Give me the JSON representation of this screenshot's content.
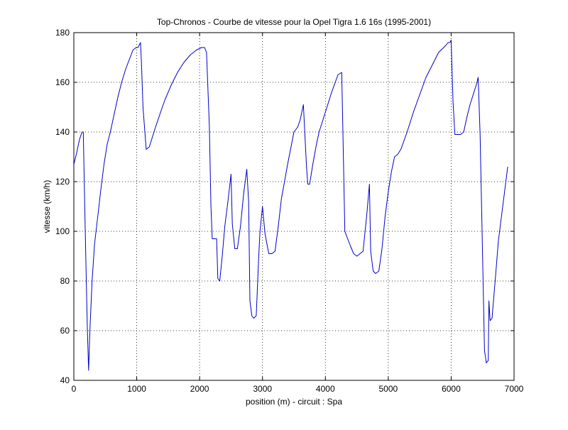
{
  "chart_data": {
    "type": "line",
    "title": "Top-Chronos - Courbe de vitesse pour la Opel Tigra 1.6 16s (1995-2001)",
    "xlabel": "position (m) - circuit : Spa",
    "ylabel": "vitesse (km/h)",
    "xlim": [
      0,
      7000
    ],
    "ylim": [
      40,
      180
    ],
    "xticks": [
      0,
      1000,
      2000,
      3000,
      4000,
      5000,
      6000,
      7000
    ],
    "yticks": [
      40,
      60,
      80,
      100,
      120,
      140,
      160,
      180
    ],
    "grid": true,
    "line_color": "#0000cc",
    "series": [
      {
        "x": [
          0,
          40,
          90,
          130,
          150,
          175,
          200,
          215,
          235,
          255,
          290,
          330,
          380,
          430,
          480,
          530,
          580,
          640,
          700,
          760,
          820,
          880,
          940,
          990,
          1020,
          1040,
          1060,
          1075,
          1100,
          1150,
          1200,
          1250,
          1300,
          1380,
          1450,
          1550,
          1650,
          1750,
          1850,
          1950,
          2030,
          2080,
          2110,
          2155,
          2180,
          2200,
          2230,
          2270,
          2290,
          2320,
          2360,
          2400,
          2450,
          2500,
          2520,
          2560,
          2600,
          2650,
          2700,
          2750,
          2780,
          2800,
          2830,
          2860,
          2900,
          2940,
          2960,
          3000,
          3040,
          3070,
          3100,
          3150,
          3200,
          3250,
          3300,
          3400,
          3500,
          3560,
          3600,
          3650,
          3700,
          3720,
          3750,
          3800,
          3850,
          3900,
          3950,
          4000,
          4100,
          4200,
          4260,
          4290,
          4310,
          4400,
          4450,
          4500,
          4550,
          4600,
          4660,
          4700,
          4720,
          4760,
          4800,
          4850,
          4900,
          4950,
          5000,
          5050,
          5100,
          5150,
          5200,
          5300,
          5400,
          5500,
          5600,
          5700,
          5800,
          5880,
          5920,
          5950,
          5980,
          6000,
          6030,
          6060,
          6090,
          6150,
          6200,
          6250,
          6300,
          6350,
          6400,
          6430,
          6460,
          6500,
          6530,
          6560,
          6590,
          6600,
          6620,
          6650,
          6700,
          6750,
          6800,
          6850,
          6900
        ],
        "y": [
          127,
          131,
          137,
          140,
          140,
          108,
          78,
          61,
          44,
          60,
          80,
          95,
          106,
          117,
          127,
          135,
          140,
          147,
          154,
          160,
          165,
          169,
          173,
          174,
          174,
          175,
          176,
          168,
          150,
          133,
          134,
          138,
          142,
          148,
          153,
          159,
          164,
          168,
          171,
          173,
          174,
          174,
          172,
          142,
          110,
          97,
          97,
          97,
          81,
          80,
          90,
          102,
          112,
          123,
          103,
          93,
          93,
          102,
          115,
          125,
          112,
          72,
          66,
          65,
          66,
          90,
          100,
          110,
          99,
          95,
          91,
          91,
          92,
          102,
          113,
          127,
          140,
          142,
          145,
          151,
          126,
          119,
          119,
          127,
          134,
          140,
          144,
          148,
          156,
          163,
          164,
          125,
          100,
          94,
          91,
          90,
          91,
          92,
          107,
          119,
          92,
          84,
          83,
          84,
          93,
          106,
          116,
          124,
          130,
          131,
          133,
          140,
          148,
          155,
          162,
          167,
          172,
          174,
          175,
          176,
          176,
          177,
          152,
          139,
          139,
          139,
          140,
          146,
          151,
          155,
          159,
          162,
          139,
          90,
          52,
          47,
          48,
          72,
          64,
          65,
          80,
          96,
          106,
          116,
          126
        ]
      }
    ]
  }
}
